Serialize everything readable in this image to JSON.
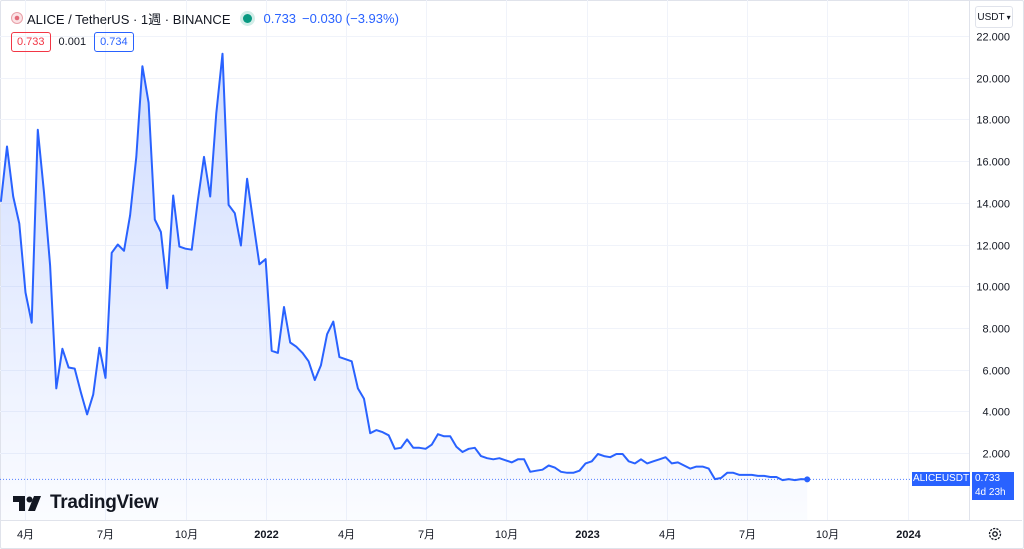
{
  "header": {
    "symbol": "ALICE / TetherUS · 1週 · BINANCE",
    "last_price": "0.733",
    "change": "−0.030 (−3.93%)",
    "bid": "0.733",
    "spread": "0.001",
    "ask": "0.734"
  },
  "currency_button": {
    "label": "USDT"
  },
  "price_tag": {
    "symbol": "ALICEUSDT",
    "value": "0.733",
    "countdown": "4d 23h"
  },
  "logo": {
    "text": "TradingView"
  },
  "colors": {
    "line": "#2962ff",
    "positive": "#089981",
    "negative": "#f23645",
    "grid": "#f0f3fa"
  },
  "chart_data": {
    "type": "area",
    "title": "",
    "xlabel": "",
    "ylabel": "",
    "interval": "1週",
    "ylim": [
      0,
      23
    ],
    "y_ticks": [
      "22.000",
      "20.000",
      "18.000",
      "16.000",
      "14.000",
      "12.000",
      "10.000",
      "8.000",
      "6.000",
      "4.000",
      "2.000"
    ],
    "x_ticks": [
      {
        "label": "4月",
        "date": "2021-04-01"
      },
      {
        "label": "7月",
        "date": "2021-07-01"
      },
      {
        "label": "10月",
        "date": "2021-10-01"
      },
      {
        "label": "2022",
        "date": "2022-01-01",
        "bold": true
      },
      {
        "label": "4月",
        "date": "2022-04-01"
      },
      {
        "label": "7月",
        "date": "2022-07-01"
      },
      {
        "label": "10月",
        "date": "2022-10-01"
      },
      {
        "label": "2023",
        "date": "2023-01-01",
        "bold": true
      },
      {
        "label": "4月",
        "date": "2023-04-01"
      },
      {
        "label": "7月",
        "date": "2023-07-01"
      },
      {
        "label": "10月",
        "date": "2023-10-01"
      },
      {
        "label": "2024",
        "date": "2024-01-01",
        "bold": true
      }
    ],
    "x_range": [
      "2021-03-04",
      "2024-03-10"
    ],
    "grid": true,
    "series": [
      {
        "values": [
          [
            "2021-03-05",
            14.05
          ],
          [
            "2021-03-12",
            16.7
          ],
          [
            "2021-03-19",
            14.3
          ],
          [
            "2021-03-26",
            13.0
          ],
          [
            "2021-04-02",
            9.7
          ],
          [
            "2021-04-09",
            8.25
          ],
          [
            "2021-04-16",
            17.5
          ],
          [
            "2021-04-23",
            14.5
          ],
          [
            "2021-04-30",
            11.0
          ],
          [
            "2021-05-07",
            5.1
          ],
          [
            "2021-05-14",
            7.0
          ],
          [
            "2021-05-21",
            6.1
          ],
          [
            "2021-05-28",
            6.05
          ],
          [
            "2021-06-04",
            4.9
          ],
          [
            "2021-06-11",
            3.85
          ],
          [
            "2021-06-18",
            4.8
          ],
          [
            "2021-06-25",
            7.05
          ],
          [
            "2021-07-02",
            5.6
          ],
          [
            "2021-07-09",
            11.6
          ],
          [
            "2021-07-16",
            12.0
          ],
          [
            "2021-07-23",
            11.7
          ],
          [
            "2021-07-30",
            13.4
          ],
          [
            "2021-08-06",
            16.2
          ],
          [
            "2021-08-13",
            20.55
          ],
          [
            "2021-08-20",
            18.8
          ],
          [
            "2021-08-27",
            13.2
          ],
          [
            "2021-09-03",
            12.6
          ],
          [
            "2021-09-10",
            9.9
          ],
          [
            "2021-09-17",
            14.35
          ],
          [
            "2021-09-24",
            11.9
          ],
          [
            "2021-10-01",
            11.8
          ],
          [
            "2021-10-08",
            11.75
          ],
          [
            "2021-10-15",
            14.1
          ],
          [
            "2021-10-22",
            16.2
          ],
          [
            "2021-10-29",
            14.3
          ],
          [
            "2021-11-05",
            18.3
          ],
          [
            "2021-11-12",
            21.15
          ],
          [
            "2021-11-19",
            13.9
          ],
          [
            "2021-11-26",
            13.5
          ],
          [
            "2021-12-03",
            11.95
          ],
          [
            "2021-12-10",
            15.15
          ],
          [
            "2021-12-17",
            13.1
          ],
          [
            "2021-12-24",
            11.05
          ],
          [
            "2021-12-31",
            11.3
          ],
          [
            "2022-01-07",
            6.9
          ],
          [
            "2022-01-14",
            6.8
          ],
          [
            "2022-01-21",
            9.0
          ],
          [
            "2022-01-28",
            7.3
          ],
          [
            "2022-02-04",
            7.1
          ],
          [
            "2022-02-11",
            6.8
          ],
          [
            "2022-02-18",
            6.4
          ],
          [
            "2022-02-25",
            5.5
          ],
          [
            "2022-03-04",
            6.2
          ],
          [
            "2022-03-11",
            7.7
          ],
          [
            "2022-03-18",
            8.3
          ],
          [
            "2022-03-25",
            6.6
          ],
          [
            "2022-04-01",
            6.5
          ],
          [
            "2022-04-08",
            6.4
          ],
          [
            "2022-04-15",
            5.1
          ],
          [
            "2022-04-22",
            4.6
          ],
          [
            "2022-04-29",
            2.95
          ],
          [
            "2022-05-06",
            3.1
          ],
          [
            "2022-05-13",
            3.0
          ],
          [
            "2022-05-20",
            2.85
          ],
          [
            "2022-05-27",
            2.2
          ],
          [
            "2022-06-03",
            2.25
          ],
          [
            "2022-06-10",
            2.65
          ],
          [
            "2022-06-17",
            2.25
          ],
          [
            "2022-06-24",
            2.25
          ],
          [
            "2022-07-01",
            2.2
          ],
          [
            "2022-07-08",
            2.4
          ],
          [
            "2022-07-15",
            2.9
          ],
          [
            "2022-07-22",
            2.8
          ],
          [
            "2022-07-29",
            2.8
          ],
          [
            "2022-08-05",
            2.3
          ],
          [
            "2022-08-12",
            2.05
          ],
          [
            "2022-08-19",
            2.2
          ],
          [
            "2022-08-26",
            2.25
          ],
          [
            "2022-09-02",
            1.85
          ],
          [
            "2022-09-09",
            1.75
          ],
          [
            "2022-09-16",
            1.7
          ],
          [
            "2022-09-23",
            1.75
          ],
          [
            "2022-09-30",
            1.65
          ],
          [
            "2022-10-07",
            1.55
          ],
          [
            "2022-10-14",
            1.7
          ],
          [
            "2022-10-21",
            1.7
          ],
          [
            "2022-10-28",
            1.1
          ],
          [
            "2022-11-04",
            1.15
          ],
          [
            "2022-11-11",
            1.2
          ],
          [
            "2022-11-18",
            1.4
          ],
          [
            "2022-11-25",
            1.3
          ],
          [
            "2022-12-02",
            1.1
          ],
          [
            "2022-12-09",
            1.05
          ],
          [
            "2022-12-16",
            1.05
          ],
          [
            "2022-12-23",
            1.15
          ],
          [
            "2022-12-30",
            1.5
          ],
          [
            "2023-01-06",
            1.6
          ],
          [
            "2023-01-13",
            1.95
          ],
          [
            "2023-01-20",
            1.85
          ],
          [
            "2023-01-27",
            1.8
          ],
          [
            "2023-02-03",
            1.95
          ],
          [
            "2023-02-10",
            1.95
          ],
          [
            "2023-02-17",
            1.6
          ],
          [
            "2023-02-24",
            1.5
          ],
          [
            "2023-03-03",
            1.7
          ],
          [
            "2023-03-10",
            1.5
          ],
          [
            "2023-03-17",
            1.6
          ],
          [
            "2023-03-24",
            1.7
          ],
          [
            "2023-03-31",
            1.8
          ],
          [
            "2023-04-07",
            1.5
          ],
          [
            "2023-04-14",
            1.55
          ],
          [
            "2023-04-21",
            1.4
          ],
          [
            "2023-04-28",
            1.25
          ],
          [
            "2023-05-05",
            1.35
          ],
          [
            "2023-05-12",
            1.35
          ],
          [
            "2023-05-19",
            1.25
          ],
          [
            "2023-05-26",
            0.75
          ],
          [
            "2023-06-02",
            0.8
          ],
          [
            "2023-06-09",
            1.05
          ],
          [
            "2023-06-16",
            1.05
          ],
          [
            "2023-06-23",
            0.95
          ],
          [
            "2023-06-30",
            0.95
          ],
          [
            "2023-07-07",
            0.95
          ],
          [
            "2023-07-14",
            0.9
          ],
          [
            "2023-07-21",
            0.9
          ],
          [
            "2023-07-28",
            0.85
          ],
          [
            "2023-08-04",
            0.85
          ],
          [
            "2023-08-11",
            0.7
          ],
          [
            "2023-08-18",
            0.75
          ],
          [
            "2023-08-25",
            0.7
          ],
          [
            "2023-09-01",
            0.75
          ],
          [
            "2023-09-08",
            0.733
          ]
        ]
      }
    ]
  }
}
